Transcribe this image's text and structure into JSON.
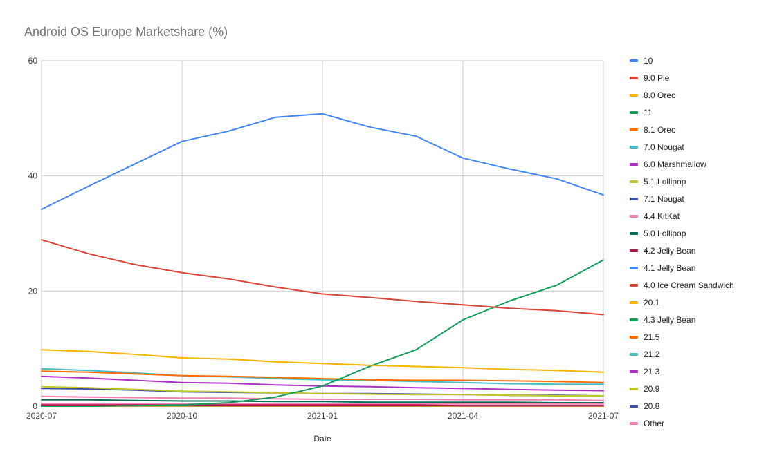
{
  "chart_data": {
    "type": "line",
    "title": "Android OS Europe Marketshare (%)",
    "xlabel": "Date",
    "ylabel": "",
    "x": [
      "2020-07",
      "2020-08",
      "2020-09",
      "2020-10",
      "2020-11",
      "2020-12",
      "2021-01",
      "2021-02",
      "2021-03",
      "2021-04",
      "2021-05",
      "2021-06",
      "2021-07"
    ],
    "x_tick_labels": [
      "2020-07",
      "2020-10",
      "2021-01",
      "2021-04",
      "2021-07"
    ],
    "ylim": [
      0,
      60
    ],
    "y_ticks": [
      0,
      20,
      40,
      60
    ],
    "grid": true,
    "legend_position": "right",
    "series": [
      {
        "name": "10",
        "color": "#4285f4",
        "values": [
          34.2,
          38.2,
          42.1,
          46.0,
          47.8,
          50.2,
          50.8,
          48.5,
          46.9,
          43.1,
          41.2,
          39.5,
          36.7
        ]
      },
      {
        "name": "9.0 Pie",
        "color": "#db4437",
        "values": [
          28.9,
          26.5,
          24.6,
          23.2,
          22.1,
          20.7,
          19.5,
          18.9,
          18.2,
          17.6,
          17.0,
          16.6,
          15.9
        ]
      },
      {
        "name": "8.0 Oreo",
        "color": "#f4b400",
        "values": [
          9.8,
          9.5,
          9.0,
          8.4,
          8.2,
          7.7,
          7.4,
          7.1,
          6.9,
          6.7,
          6.4,
          6.2,
          5.9
        ]
      },
      {
        "name": "11",
        "color": "#0f9d58",
        "values": [
          0.0,
          0.0,
          0.1,
          0.2,
          0.6,
          1.6,
          3.5,
          6.9,
          9.8,
          15.0,
          18.3,
          21.0,
          25.4
        ]
      },
      {
        "name": "8.1 Oreo",
        "color": "#ff6d01",
        "values": [
          6.1,
          5.9,
          5.6,
          5.3,
          5.2,
          5.0,
          4.8,
          4.6,
          4.5,
          4.5,
          4.4,
          4.3,
          4.1
        ]
      },
      {
        "name": "7.0 Nougat",
        "color": "#46bdc6",
        "values": [
          6.5,
          6.2,
          5.8,
          5.3,
          5.1,
          4.8,
          4.6,
          4.5,
          4.3,
          4.1,
          3.9,
          3.8,
          3.8
        ]
      },
      {
        "name": "6.0 Marshmallow",
        "color": "#ab30c4",
        "values": [
          5.2,
          4.9,
          4.5,
          4.1,
          4.0,
          3.7,
          3.5,
          3.4,
          3.2,
          3.1,
          2.9,
          2.8,
          2.7
        ]
      },
      {
        "name": "5.1 Lollipop",
        "color": "#c2c626",
        "values": [
          3.4,
          3.2,
          2.9,
          2.6,
          2.5,
          2.3,
          2.2,
          2.1,
          2.0,
          2.0,
          1.9,
          1.8,
          1.8
        ]
      },
      {
        "name": "7.1 Nougat",
        "color": "#3c4ea6",
        "values": [
          3.1,
          3.0,
          2.8,
          2.5,
          2.4,
          2.3,
          2.2,
          2.2,
          2.1,
          2.0,
          1.9,
          1.9,
          1.8
        ]
      },
      {
        "name": "4.4 KitKat",
        "color": "#f27fb1",
        "values": [
          1.7,
          1.6,
          1.5,
          1.4,
          1.4,
          1.3,
          1.2,
          1.2,
          1.2,
          1.1,
          1.1,
          1.1,
          1.0
        ]
      },
      {
        "name": "5.0 Lollipop",
        "color": "#0b6b5b",
        "values": [
          1.1,
          1.1,
          1.0,
          0.9,
          0.9,
          0.8,
          0.8,
          0.7,
          0.7,
          0.7,
          0.7,
          0.6,
          0.6
        ]
      },
      {
        "name": "4.2 Jelly Bean",
        "color": "#b3174a",
        "values": [
          0.2,
          0.2,
          0.2,
          0.2,
          0.2,
          0.2,
          0.2,
          0.2,
          0.2,
          0.1,
          0.1,
          0.1,
          0.1
        ]
      },
      {
        "name": "4.1 Jelly Bean",
        "color": "#4285f4",
        "values": [
          0.1,
          0.1,
          0.1,
          0.1,
          0.1,
          0.1,
          0.1,
          0.1,
          0.1,
          0.1,
          0.1,
          0.1,
          0.1
        ]
      },
      {
        "name": "4.0 Ice Cream Sandwich",
        "color": "#db4437",
        "values": [
          0.1,
          0.1,
          0.1,
          0.1,
          0.1,
          0.1,
          0.1,
          0.1,
          0.1,
          0.1,
          0.1,
          0.1,
          0.1
        ]
      },
      {
        "name": "20.1",
        "color": "#f4b400",
        "values": [
          0.0,
          0.0,
          0.0,
          0.0,
          0.0,
          0.0,
          0.0,
          0.0,
          0.0,
          0.0,
          0.0,
          0.0,
          0.0
        ]
      },
      {
        "name": "4.3 Jelly Bean",
        "color": "#0f9d58",
        "values": [
          0.1,
          0.1,
          0.1,
          0.1,
          0.1,
          0.1,
          0.1,
          0.1,
          0.1,
          0.1,
          0.1,
          0.1,
          0.1
        ]
      },
      {
        "name": "21.5",
        "color": "#ff6d01",
        "values": [
          0.0,
          0.0,
          0.0,
          0.0,
          0.0,
          0.0,
          0.0,
          0.0,
          0.0,
          0.0,
          0.0,
          0.0,
          0.0
        ]
      },
      {
        "name": "21.2",
        "color": "#46bdc6",
        "values": [
          0.0,
          0.0,
          0.0,
          0.0,
          0.0,
          0.0,
          0.0,
          0.0,
          0.0,
          0.0,
          0.0,
          0.0,
          0.0
        ]
      },
      {
        "name": "21.3",
        "color": "#ab30c4",
        "values": [
          0.0,
          0.0,
          0.0,
          0.0,
          0.0,
          0.0,
          0.0,
          0.0,
          0.0,
          0.0,
          0.0,
          0.0,
          0.0
        ]
      },
      {
        "name": "20.9",
        "color": "#c2c626",
        "values": [
          0.0,
          0.0,
          0.0,
          0.0,
          0.0,
          0.0,
          0.0,
          0.0,
          0.0,
          0.0,
          0.0,
          0.0,
          0.0
        ]
      },
      {
        "name": "20.8",
        "color": "#3c4ea6",
        "values": [
          0.0,
          0.0,
          0.0,
          0.0,
          0.0,
          0.0,
          0.0,
          0.0,
          0.0,
          0.0,
          0.0,
          0.0,
          0.0
        ]
      },
      {
        "name": "Other",
        "color": "#f27fb1",
        "values": [
          0.4,
          0.4,
          0.4,
          0.4,
          0.4,
          0.4,
          0.4,
          0.4,
          0.4,
          0.4,
          0.4,
          0.4,
          0.4
        ]
      }
    ]
  }
}
